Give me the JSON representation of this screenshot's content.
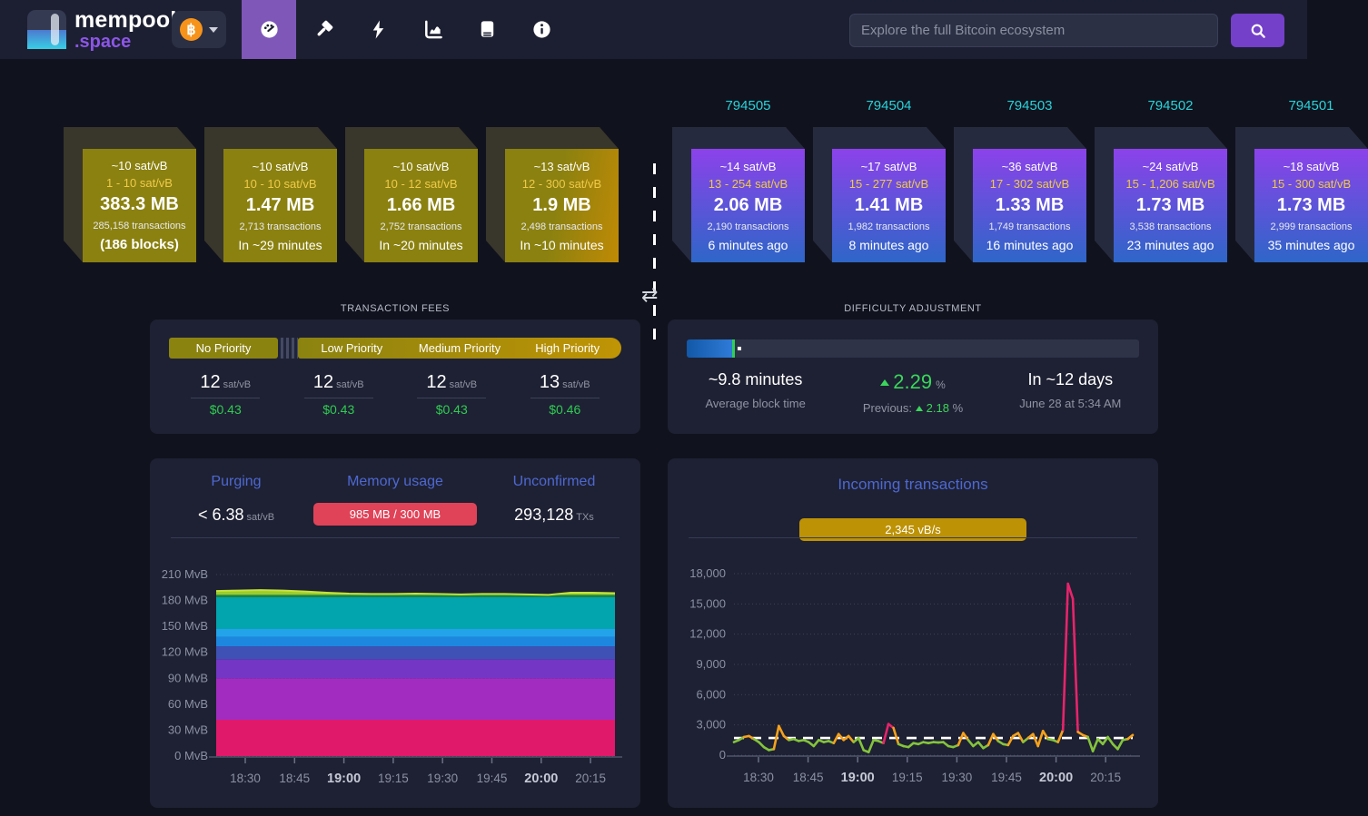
{
  "header": {
    "brand": "mempool",
    "brand_suffix": ".space",
    "bitcoin_symbol": "฿",
    "search_placeholder": "Explore the full Bitcoin ecosystem",
    "nav": [
      {
        "name": "dashboard",
        "active": true
      },
      {
        "name": "mining",
        "active": false
      },
      {
        "name": "lightning",
        "active": false
      },
      {
        "name": "graphs",
        "active": false
      },
      {
        "name": "docs",
        "active": false
      },
      {
        "name": "about",
        "active": false
      }
    ]
  },
  "colors": {
    "brand_purple": "#7e57b8",
    "height_cyan": "#29d3da",
    "price_green": "#2fcc52",
    "memory_badge_red": "#e04358",
    "incoming_badge_gold": "#bd9205"
  },
  "mempool_blocks": [
    {
      "median": "~10 sat/vB",
      "range": "1 - 10 sat/vB",
      "size": "383.3 MB",
      "txs": "285,158 transactions",
      "eta": "(186 blocks)",
      "eta_bold": true
    },
    {
      "median": "~10 sat/vB",
      "range": "10 - 10 sat/vB",
      "size": "1.47 MB",
      "txs": "2,713 transactions",
      "eta": "In ~29 minutes",
      "eta_bold": false
    },
    {
      "median": "~10 sat/vB",
      "range": "10 - 12 sat/vB",
      "size": "1.66 MB",
      "txs": "2,752 transactions",
      "eta": "In ~20 minutes",
      "eta_bold": false
    },
    {
      "median": "~13 sat/vB",
      "range": "12 - 300 sat/vB",
      "size": "1.9 MB",
      "txs": "2,498 transactions",
      "eta": "In ~10 minutes",
      "eta_bold": false
    }
  ],
  "mined_blocks": [
    {
      "height": "794505",
      "median": "~14 sat/vB",
      "range": "13 - 254 sat/vB",
      "size": "2.06 MB",
      "txs": "2,190 transactions",
      "time": "6 minutes ago"
    },
    {
      "height": "794504",
      "median": "~17 sat/vB",
      "range": "15 - 277 sat/vB",
      "size": "1.41 MB",
      "txs": "1,982 transactions",
      "time": "8 minutes ago"
    },
    {
      "height": "794503",
      "median": "~36 sat/vB",
      "range": "17 - 302 sat/vB",
      "size": "1.33 MB",
      "txs": "1,749 transactions",
      "time": "16 minutes ago"
    },
    {
      "height": "794502",
      "median": "~24 sat/vB",
      "range": "15 - 1,206 sat/vB",
      "size": "1.73 MB",
      "txs": "3,538 transactions",
      "time": "23 minutes ago"
    },
    {
      "height": "794501",
      "median": "~18 sat/vB",
      "range": "15 - 300 sat/vB",
      "size": "1.73 MB",
      "txs": "2,999 transactions",
      "time": "35 minutes ago"
    }
  ],
  "fees": {
    "section_label": "TRANSACTION FEES",
    "bar_labels": {
      "no": "No Priority",
      "low": "Low Priority",
      "medium": "Medium Priority",
      "high": "High Priority"
    },
    "tiers": [
      {
        "rate": "12",
        "unit": "sat/vB",
        "usd": "$0.43"
      },
      {
        "rate": "12",
        "unit": "sat/vB",
        "usd": "$0.43"
      },
      {
        "rate": "12",
        "unit": "sat/vB",
        "usd": "$0.43"
      },
      {
        "rate": "13",
        "unit": "sat/vB",
        "usd": "$0.46"
      }
    ]
  },
  "difficulty": {
    "section_label": "DIFFICULTY ADJUSTMENT",
    "progress_percent": 10,
    "avg_block_time": "~9.8 minutes",
    "avg_caption": "Average block time",
    "change": "2.29",
    "change_unit": "%",
    "previous_label": "Previous:",
    "previous": "2.18",
    "previous_unit": "%",
    "eta": "In ~12 days",
    "eta_date": "June 28 at 5:34 AM"
  },
  "mempool_stats": {
    "purging_label": "Purging",
    "purging_value": "< 6.38",
    "purging_unit": "sat/vB",
    "memory_label": "Memory usage",
    "memory_value": "985 MB / 300 MB",
    "unconfirmed_label": "Unconfirmed",
    "unconfirmed_value": "293,128",
    "unconfirmed_unit": "TXs"
  },
  "incoming": {
    "title": "Incoming transactions",
    "badge": "2,345 vB/s"
  },
  "swap_icon_glyph": "⇄",
  "chart_data": [
    {
      "name": "mempool_size_by_fee",
      "type": "area",
      "ylabel": "MvB",
      "ylim": [
        0,
        210
      ],
      "yticks": [
        210,
        180,
        150,
        120,
        90,
        60,
        30,
        0
      ],
      "xticks": [
        "18:30",
        "18:45",
        "19:00",
        "19:15",
        "19:30",
        "19:45",
        "20:00",
        "20:15"
      ],
      "bold_xtick_indexes": [
        2,
        6
      ],
      "grid": "dotted",
      "stack_bands": [
        {
          "from": 0,
          "to": 42,
          "color": "#e0196a"
        },
        {
          "from": 42,
          "to": 90,
          "color": "#a32cc0"
        },
        {
          "from": 90,
          "to": 112,
          "color": "#7436c4"
        },
        {
          "from": 112,
          "to": 127,
          "color": "#3f51b5"
        },
        {
          "from": 127,
          "to": 138,
          "color": "#1d87e0"
        },
        {
          "from": 138,
          "to": 147,
          "color": "#23a3ea"
        },
        {
          "from": 147,
          "to": 184,
          "color": "#02a5ad"
        },
        {
          "from": 184,
          "to": 186.5,
          "color": "#1d8a3e"
        }
      ],
      "top_band_color": "#9ccc2e",
      "top_band_stroke": "#c3e23c",
      "top_band_base": 186.5,
      "top_series": [
        191,
        191.5,
        192,
        191.5,
        190.5,
        189,
        188,
        187.5,
        187.5,
        188,
        187.5,
        187,
        187.5,
        187.5,
        187,
        186.5,
        189,
        189,
        188.5
      ]
    },
    {
      "name": "incoming_transactions_vbs",
      "type": "line",
      "ylim": [
        0,
        18000
      ],
      "yticks": [
        18000,
        15000,
        12000,
        9000,
        6000,
        3000,
        0
      ],
      "xticks": [
        "18:30",
        "18:45",
        "19:00",
        "19:15",
        "19:30",
        "19:45",
        "20:00",
        "20:15"
      ],
      "bold_xtick_indexes": [
        2,
        6
      ],
      "grid": "dotted",
      "avg_line_value": 1700,
      "thresholds": {
        "orange_above": 1900,
        "pink_above": 3000
      },
      "line_colors": {
        "green": "#84c43c",
        "orange": "#f5a11c",
        "pink": "#e7246b"
      },
      "values": [
        1300,
        1500,
        1800,
        1900,
        1600,
        1300,
        800,
        500,
        600,
        2900,
        1900,
        1500,
        1600,
        1400,
        1500,
        1300,
        900,
        1500,
        1300,
        1400,
        1200,
        2100,
        1500,
        1900,
        1300,
        1700,
        500,
        300,
        1500,
        1400,
        1200,
        3100,
        2700,
        1100,
        900,
        800,
        1200,
        1100,
        1300,
        1200,
        1300,
        1250,
        1300,
        900,
        800,
        1000,
        2200,
        1500,
        900,
        1300,
        700,
        1000,
        2100,
        1400,
        1100,
        1000,
        1900,
        2200,
        1300,
        1700,
        2100,
        900,
        2400,
        1600,
        1500,
        1300,
        2500,
        17000,
        15500,
        2300,
        2000,
        1800,
        400,
        1600,
        1100,
        1800,
        1100,
        600,
        1500,
        1600,
        2000
      ]
    }
  ]
}
